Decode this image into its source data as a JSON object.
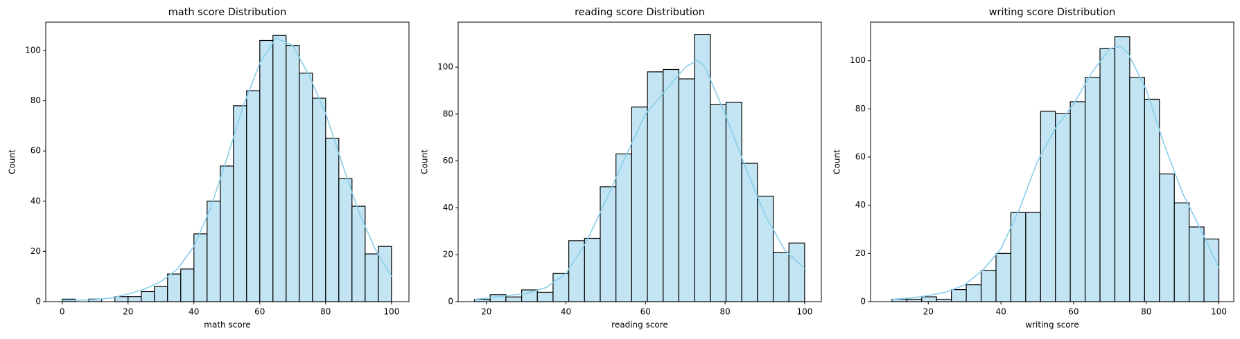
{
  "chart_data": [
    {
      "type": "histogram",
      "title": "math score Distribution",
      "xlabel": "math score",
      "ylabel": "Count",
      "bins": [
        0,
        4,
        8,
        12,
        16,
        20,
        24,
        28,
        32,
        36,
        40,
        44,
        48,
        52,
        56,
        60,
        64,
        68,
        72,
        76,
        80,
        84,
        88,
        92,
        96,
        100
      ],
      "values": [
        1,
        0,
        1,
        0,
        2,
        2,
        4,
        6,
        11,
        13,
        27,
        40,
        54,
        78,
        84,
        104,
        106,
        102,
        91,
        81,
        65,
        49,
        38,
        19,
        22
      ],
      "color": "#c3e5f3",
      "edgecolor": "#000000",
      "kde": {
        "color": "#87ceeb",
        "x": [
          0,
          5,
          10,
          15,
          20,
          25,
          30,
          35,
          40,
          45,
          50,
          55,
          60,
          65,
          70,
          75,
          80,
          85,
          90,
          95,
          100
        ],
        "values": [
          0.5,
          0.6,
          0.8,
          1.5,
          3,
          5,
          8,
          13,
          22,
          37,
          57,
          78,
          95,
          105,
          102,
          90,
          75,
          55,
          36,
          21,
          10
        ]
      },
      "xlim": [
        -5,
        105.3
      ],
      "ylim": [
        0,
        111.3
      ],
      "xticks": [
        0,
        20,
        40,
        60,
        80,
        100
      ],
      "yticks": [
        0,
        20,
        40,
        60,
        80,
        100
      ]
    },
    {
      "type": "histogram",
      "title": "reading score Distribution",
      "xlabel": "reading score",
      "ylabel": "Count",
      "bins": [
        17,
        20.95,
        24.9,
        28.86,
        32.81,
        36.76,
        40.71,
        44.67,
        48.62,
        52.57,
        56.52,
        60.48,
        64.43,
        68.38,
        72.33,
        76.29,
        80.24,
        84.19,
        88.14,
        92.1,
        96.05,
        100
      ],
      "values": [
        1,
        3,
        2,
        5,
        4,
        12,
        26,
        27,
        49,
        63,
        83,
        98,
        99,
        95,
        114,
        84,
        85,
        59,
        45,
        21,
        25
      ],
      "color": "#c3e5f3",
      "edgecolor": "#000000",
      "kde": {
        "color": "#87ceeb",
        "x": [
          17,
          20,
          25,
          30,
          35,
          40,
          45,
          50,
          55,
          60,
          65,
          70,
          73,
          75,
          80,
          85,
          90,
          95,
          100
        ],
        "values": [
          1,
          1.5,
          2.5,
          3.5,
          6,
          12,
          25,
          43,
          62,
          80,
          90,
          100,
          103,
          100,
          80,
          58,
          37,
          22,
          14
        ]
      },
      "xlim": [
        12.9,
        104.2
      ],
      "ylim": [
        0,
        119.2
      ],
      "xticks": [
        20,
        40,
        60,
        80,
        100
      ],
      "yticks": [
        0,
        20,
        40,
        60,
        80,
        100
      ]
    },
    {
      "type": "histogram",
      "title": "writing score Distribution",
      "xlabel": "writing score",
      "ylabel": "Count",
      "bins": [
        10,
        14.09,
        18.18,
        22.27,
        26.36,
        30.45,
        34.55,
        38.64,
        42.73,
        46.82,
        50.91,
        55,
        59.09,
        63.18,
        67.27,
        71.36,
        75.45,
        79.55,
        83.64,
        87.73,
        91.82,
        95.91,
        100
      ],
      "values": [
        1,
        1,
        2,
        1,
        5,
        7,
        13,
        20,
        37,
        37,
        79,
        78,
        83,
        93,
        105,
        110,
        93,
        84,
        53,
        41,
        31,
        26
      ],
      "color": "#c3e5f3",
      "edgecolor": "#000000",
      "kde": {
        "color": "#87ceeb",
        "x": [
          10,
          15,
          20,
          25,
          30,
          35,
          40,
          45,
          50,
          55,
          60,
          65,
          70,
          73,
          75,
          80,
          85,
          90,
          95,
          100
        ],
        "values": [
          1,
          1.5,
          2.5,
          4,
          7,
          13,
          22,
          38,
          58,
          72,
          82,
          95,
          105,
          106,
          103,
          88,
          65,
          45,
          30,
          14
        ]
      },
      "xlim": [
        4.1,
        104.1
      ],
      "ylim": [
        0,
        116
      ],
      "xticks": [
        20,
        40,
        60,
        80,
        100
      ],
      "yticks": [
        0,
        20,
        40,
        60,
        80,
        100
      ]
    }
  ]
}
